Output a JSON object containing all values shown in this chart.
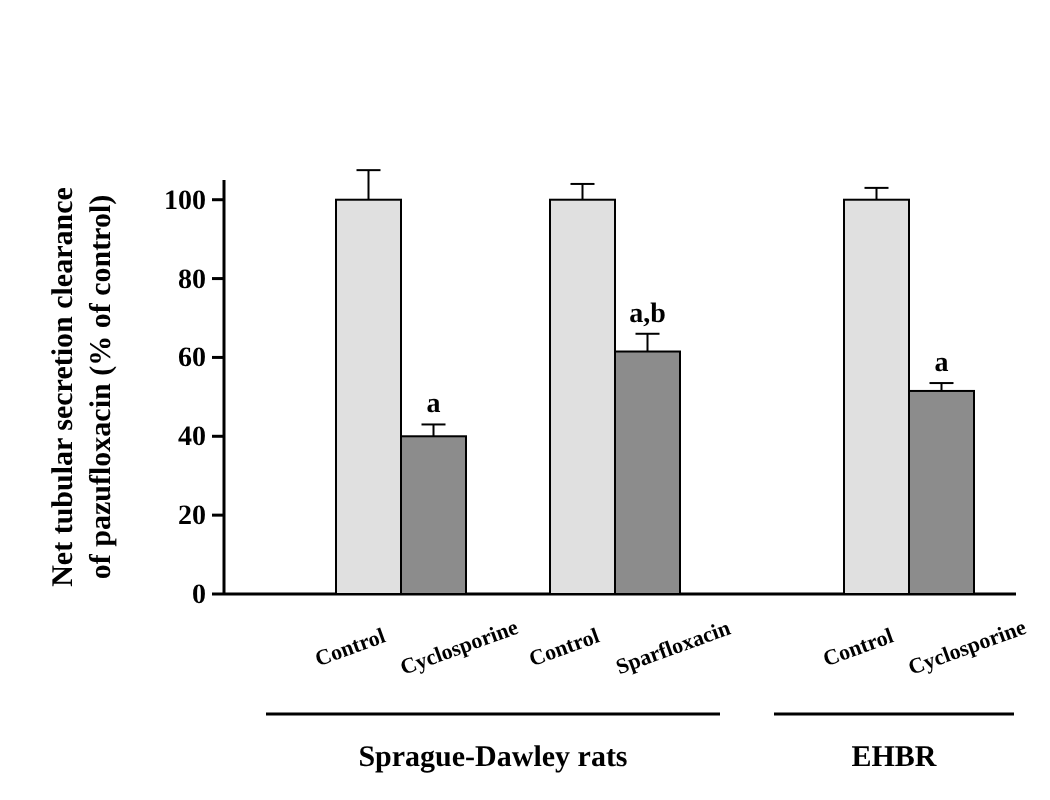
{
  "chart_data": {
    "type": "bar",
    "ylabel": "Net tubular secretion clearance of pazufloxacin (% of control)",
    "categories": [
      "Control",
      "Cyclosporine",
      "Control",
      "Sparfloxacin",
      "Control",
      "Cyclosporine"
    ],
    "values": [
      100,
      40,
      100,
      61.5,
      100,
      51.5
    ],
    "colors": [
      "#e0e0e0",
      "#8c8c8c",
      "#e0e0e0",
      "#8c8c8c",
      "#e0e0e0",
      "#8c8c8c"
    ],
    "errors": [
      7.5,
      3,
      4,
      4.5,
      3,
      2
    ],
    "value_labels": [
      null,
      "a",
      null,
      "a,b",
      null,
      "a"
    ],
    "annotations": [
      "Sprague-Dawley rats",
      "EHBR"
    ],
    "ylim": [
      0,
      105
    ],
    "yticks": [
      0,
      20,
      40,
      60,
      80,
      100
    ]
  }
}
